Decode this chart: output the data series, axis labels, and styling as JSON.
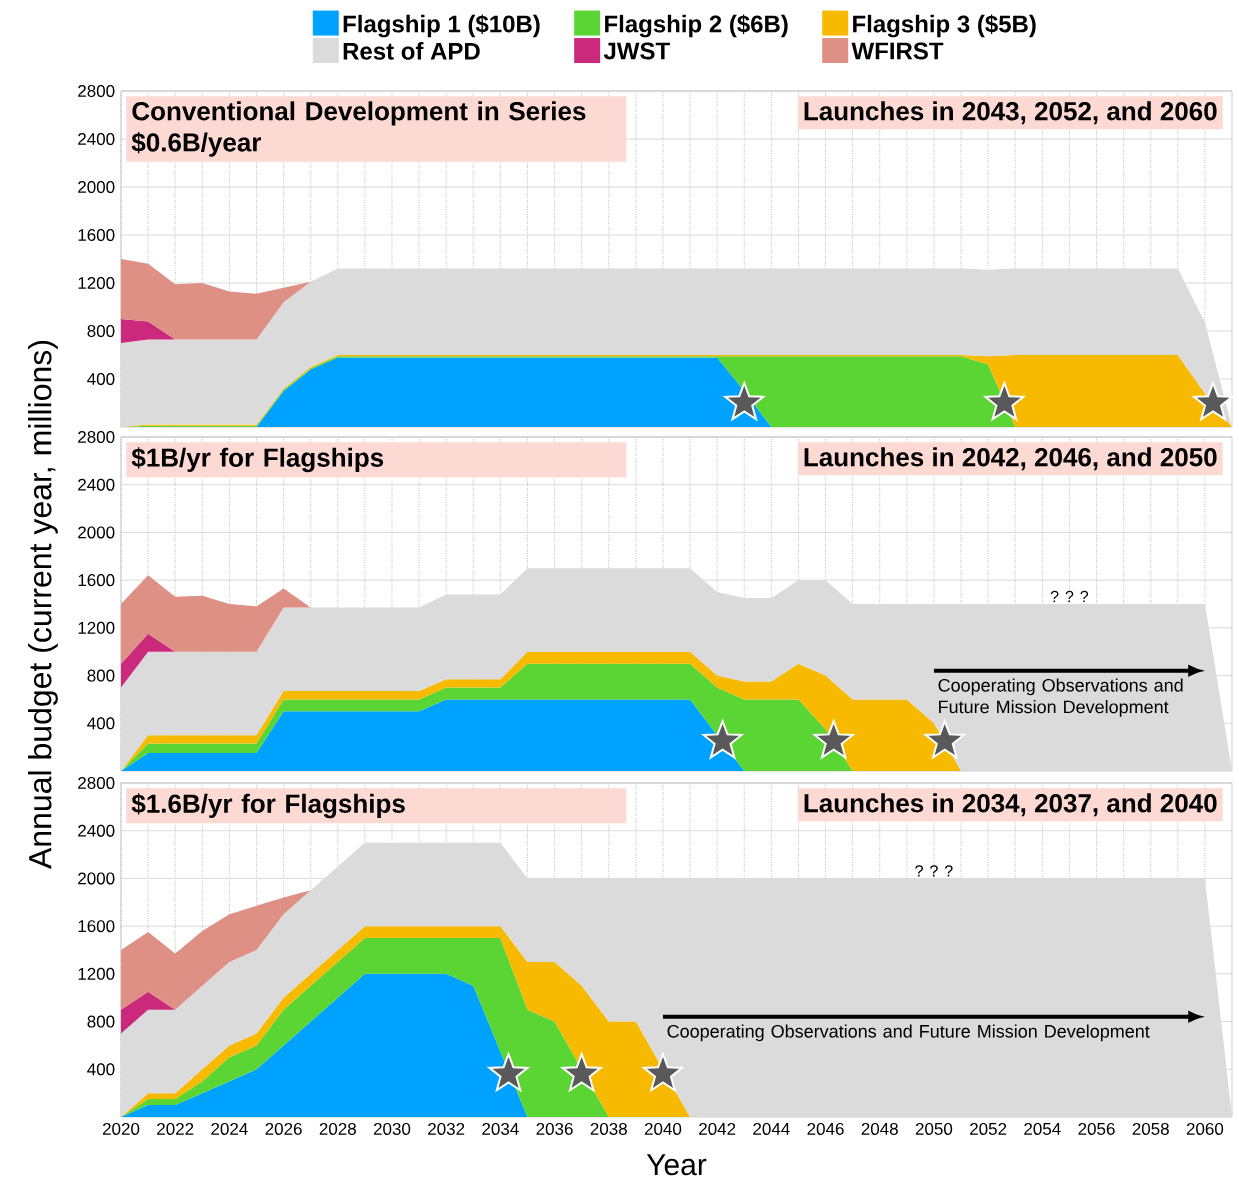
{
  "chart_data": [
    {
      "type": "area",
      "stacked": true,
      "title": "Conventional Development in Series $0.6B/year",
      "subtitle": "Launches in 2043, 2052, and 2060",
      "legend": "top",
      "grid": true,
      "tick_labels": "y",
      "x": [
        2020,
        2021,
        2022,
        2023,
        2024,
        2025,
        2026,
        2027,
        2028,
        2029,
        2030,
        2031,
        2032,
        2033,
        2034,
        2035,
        2036,
        2037,
        2038,
        2039,
        2040,
        2041,
        2042,
        2043,
        2044,
        2045,
        2046,
        2047,
        2048,
        2049,
        2050,
        2051,
        2052,
        2053,
        2054,
        2055,
        2056,
        2057,
        2058,
        2059,
        2060,
        2061
      ],
      "xlim": [
        2020,
        2061
      ],
      "ylim": [
        0,
        2800
      ],
      "yticks": [
        400,
        800,
        1200,
        1600,
        2000,
        2400,
        2800
      ],
      "xticks": [
        2020,
        {
          "value": 2021,
          "label": null
        },
        2022,
        {
          "value": 2023,
          "label": null
        },
        2024,
        {
          "value": 2025,
          "label": null
        },
        2026,
        {
          "value": 2027,
          "label": null
        },
        2028,
        {
          "value": 2029,
          "label": null
        },
        2030,
        {
          "value": 2031,
          "label": null
        },
        2032,
        {
          "value": 2033,
          "label": null
        },
        2034,
        {
          "value": 2035,
          "label": null
        },
        2036,
        {
          "value": 2037,
          "label": null
        },
        2038,
        {
          "value": 2039,
          "label": null
        },
        2040,
        {
          "value": 2041,
          "label": null
        },
        2042,
        {
          "value": 2043,
          "label": null
        },
        2044,
        {
          "value": 2045,
          "label": null
        },
        2046,
        {
          "value": 2047,
          "label": null
        },
        2048,
        {
          "value": 2049,
          "label": null
        },
        2050,
        {
          "value": 2051,
          "label": null
        },
        2052,
        {
          "value": 2053,
          "label": null
        },
        2054,
        {
          "value": 2055,
          "label": null
        },
        2056,
        {
          "value": 2057,
          "label": null
        },
        2058,
        {
          "value": 2059,
          "label": null
        },
        2060
      ],
      "series": [
        {
          "name": "Flagship 1 ($10B)",
          "color": "#00a2ff",
          "values": [
            0,
            0,
            0,
            0,
            0,
            0,
            300,
            480,
            580,
            580,
            580,
            580,
            580,
            580,
            580,
            580,
            580,
            580,
            580,
            580,
            580,
            580,
            580,
            300,
            0,
            null,
            null,
            null,
            null,
            null,
            null,
            null,
            null,
            null,
            null,
            null,
            null,
            null,
            null,
            null,
            null,
            null
          ]
        },
        {
          "name": "Flagship 2 ($6B)",
          "color": "#5ad534",
          "values": [
            0,
            10,
            10,
            10,
            10,
            10,
            10,
            10,
            10,
            10,
            10,
            10,
            10,
            10,
            10,
            10,
            10,
            10,
            10,
            10,
            10,
            10,
            10,
            290,
            590,
            590,
            590,
            590,
            590,
            590,
            590,
            590,
            520,
            0,
            null,
            null,
            null,
            null,
            null,
            null,
            null,
            null
          ]
        },
        {
          "name": "Flagship 3 ($5B)",
          "color": "#f8ba00",
          "values": [
            0,
            10,
            10,
            10,
            10,
            10,
            10,
            10,
            10,
            10,
            10,
            10,
            10,
            10,
            10,
            10,
            10,
            10,
            10,
            10,
            10,
            10,
            10,
            10,
            10,
            10,
            10,
            10,
            10,
            10,
            10,
            10,
            70,
            600,
            600,
            600,
            600,
            600,
            600,
            600,
            280,
            0
          ]
        },
        {
          "name": "Rest of APD",
          "color": "#dbdbdb",
          "values": [
            700,
            710,
            710,
            710,
            710,
            710,
            720,
            710,
            720,
            720,
            720,
            720,
            720,
            720,
            720,
            720,
            720,
            720,
            720,
            720,
            720,
            720,
            720,
            720,
            720,
            720,
            720,
            720,
            720,
            720,
            720,
            720,
            720,
            720,
            720,
            720,
            720,
            720,
            720,
            720,
            590,
            0
          ]
        },
        {
          "name": "JWST",
          "color": "#cb297b",
          "values": [
            200,
            150,
            0,
            null,
            null,
            null,
            null,
            null,
            null,
            null,
            null,
            null,
            null,
            null,
            null,
            null,
            null,
            null,
            null,
            null,
            null,
            null,
            null,
            null,
            null,
            null,
            null,
            null,
            null,
            null,
            null,
            null,
            null,
            null,
            null,
            null,
            null,
            null,
            null,
            null,
            null,
            null
          ]
        },
        {
          "name": "WFIRST",
          "color": "#de9084",
          "values": [
            500,
            480,
            460,
            470,
            400,
            380,
            120,
            0,
            null,
            null,
            null,
            null,
            null,
            null,
            null,
            null,
            null,
            null,
            null,
            null,
            null,
            null,
            null,
            null,
            null,
            null,
            null,
            null,
            null,
            null,
            null,
            null,
            null,
            null,
            null,
            null,
            null,
            null,
            null,
            null,
            null,
            null
          ]
        },
        {
          "type": "scatter",
          "marker": "star",
          "color": "#595959",
          "x": [
            2043,
            2052.6,
            2060.3
          ],
          "values": [
            200,
            200,
            200
          ]
        }
      ]
    },
    {
      "type": "area",
      "stacked": true,
      "title": "$1B/yr for Flagships",
      "subtitle": "Launches in 2042, 2046, and 2050",
      "ylabel": "Annual budget (current year, millions)",
      "grid": true,
      "tick_labels": "y",
      "x": [
        2020,
        2021,
        2022,
        2023,
        2024,
        2025,
        2026,
        2027,
        2028,
        2029,
        2030,
        2031,
        2032,
        2033,
        2034,
        2035,
        2036,
        2037,
        2038,
        2039,
        2040,
        2041,
        2042,
        2043,
        2044,
        2045,
        2046,
        2047,
        2048,
        2049,
        2050,
        2051,
        2052,
        2053,
        2054,
        2055,
        2056,
        2057,
        2058,
        2059,
        2060,
        2061
      ],
      "xlim": [
        2020,
        2061
      ],
      "ylim": [
        0,
        2800
      ],
      "yticks": [
        400,
        800,
        1200,
        1600,
        2000,
        2400,
        2800
      ],
      "xticks": [
        2020,
        {
          "value": 2021,
          "label": null
        },
        2022,
        {
          "value": 2023,
          "label": null
        },
        2024,
        {
          "value": 2025,
          "label": null
        },
        2026,
        {
          "value": 2027,
          "label": null
        },
        2028,
        {
          "value": 2029,
          "label": null
        },
        2030,
        {
          "value": 2031,
          "label": null
        },
        2032,
        {
          "value": 2033,
          "label": null
        },
        2034,
        {
          "value": 2035,
          "label": null
        },
        2036,
        {
          "value": 2037,
          "label": null
        },
        2038,
        {
          "value": 2039,
          "label": null
        },
        2040,
        {
          "value": 2041,
          "label": null
        },
        2042,
        {
          "value": 2043,
          "label": null
        },
        2044,
        {
          "value": 2045,
          "label": null
        },
        2046,
        {
          "value": 2047,
          "label": null
        },
        2048,
        {
          "value": 2049,
          "label": null
        },
        2050,
        {
          "value": 2051,
          "label": null
        },
        2052,
        {
          "value": 2053,
          "label": null
        },
        2054,
        {
          "value": 2055,
          "label": null
        },
        2056,
        {
          "value": 2057,
          "label": null
        },
        2058,
        {
          "value": 2059,
          "label": null
        },
        2060
      ],
      "annotations": [
        {
          "text": "? ? ?",
          "x": 2055,
          "y": 1400
        },
        "Cooperating Observations and Future Mission Development"
      ],
      "series": [
        {
          "color": "#00a2ff",
          "values": [
            0,
            150,
            150,
            150,
            150,
            150,
            500,
            500,
            500,
            500,
            500,
            500,
            600,
            600,
            600,
            600,
            600,
            600,
            600,
            600,
            600,
            600,
            300,
            0,
            null,
            null,
            null,
            null,
            null,
            null,
            null,
            null,
            null,
            null,
            null,
            null,
            null,
            null,
            null,
            null,
            null,
            null
          ]
        },
        {
          "color": "#5ad534",
          "values": [
            0,
            80,
            80,
            80,
            80,
            80,
            100,
            100,
            100,
            100,
            100,
            100,
            100,
            100,
            100,
            300,
            300,
            300,
            300,
            300,
            300,
            300,
            400,
            600,
            600,
            600,
            350,
            0,
            null,
            null,
            null,
            null,
            null,
            null,
            null,
            null,
            null,
            null,
            null,
            null,
            null,
            null
          ]
        },
        {
          "color": "#f8ba00",
          "values": [
            0,
            70,
            70,
            70,
            70,
            70,
            70,
            70,
            70,
            70,
            70,
            70,
            70,
            70,
            70,
            100,
            100,
            100,
            100,
            100,
            100,
            100,
            100,
            150,
            150,
            300,
            450,
            600,
            600,
            600,
            400,
            0,
            null,
            null,
            null,
            null,
            null,
            null,
            null,
            null,
            null,
            null
          ]
        },
        {
          "color": "#dbdbdb",
          "values": [
            700,
            700,
            700,
            700,
            700,
            700,
            700,
            700,
            700,
            700,
            700,
            700,
            710,
            710,
            710,
            700,
            700,
            700,
            700,
            700,
            700,
            700,
            700,
            700,
            700,
            700,
            800,
            800,
            800,
            800,
            1000,
            1400,
            1400,
            1400,
            1400,
            1400,
            1400,
            1400,
            1400,
            1400,
            1400,
            0
          ]
        },
        {
          "color": "#cb297b",
          "values": [
            200,
            150,
            0,
            null,
            null,
            null,
            null,
            null,
            null,
            null,
            null,
            null,
            null,
            null,
            null,
            null,
            null,
            null,
            null,
            null,
            null,
            null,
            null,
            null,
            null,
            null,
            null,
            null,
            null,
            null,
            null,
            null,
            null,
            null,
            null,
            null,
            null,
            null,
            null,
            null,
            null,
            null
          ]
        },
        {
          "color": "#de9084",
          "values": [
            500,
            490,
            460,
            470,
            400,
            380,
            160,
            0,
            null,
            null,
            null,
            null,
            null,
            null,
            null,
            null,
            null,
            null,
            null,
            null,
            null,
            null,
            null,
            null,
            null,
            null,
            null,
            null,
            null,
            null,
            null,
            null,
            null,
            null,
            null,
            null,
            null,
            null,
            null,
            null,
            null,
            null
          ]
        },
        {
          "type": "scatter",
          "marker": "star",
          "color": "#595959",
          "x": [
            2042.2,
            2046.3,
            2050.4
          ],
          "values": [
            250,
            250,
            250
          ]
        }
      ]
    },
    {
      "type": "area",
      "stacked": true,
      "title": "$1.6B/yr for Flagships",
      "subtitle": "Launches in 2034, 2037, and 2040",
      "xlabel": "Year",
      "grid": true,
      "x": [
        2020,
        2021,
        2022,
        2023,
        2024,
        2025,
        2026,
        2027,
        2028,
        2029,
        2030,
        2031,
        2032,
        2033,
        2034,
        2035,
        2036,
        2037,
        2038,
        2039,
        2040,
        2041,
        2042,
        2043,
        2044,
        2045,
        2046,
        2047,
        2048,
        2049,
        2050,
        2051,
        2052,
        2053,
        2054,
        2055,
        2056,
        2057,
        2058,
        2059,
        2060,
        2061
      ],
      "xlim": [
        2020,
        2061
      ],
      "ylim": [
        0,
        2800
      ],
      "yticks": [
        400,
        800,
        1200,
        1600,
        2000,
        2400,
        2800
      ],
      "xticks": [
        2020,
        {
          "value": 2021,
          "label": null
        },
        2022,
        {
          "value": 2023,
          "label": null
        },
        2024,
        {
          "value": 2025,
          "label": null
        },
        2026,
        {
          "value": 2027,
          "label": null
        },
        2028,
        {
          "value": 2029,
          "label": null
        },
        2030,
        {
          "value": 2031,
          "label": null
        },
        2032,
        {
          "value": 2033,
          "label": null
        },
        2034,
        {
          "value": 2035,
          "label": null
        },
        2036,
        {
          "value": 2037,
          "label": null
        },
        2038,
        {
          "value": 2039,
          "label": null
        },
        2040,
        {
          "value": 2041,
          "label": null
        },
        2042,
        {
          "value": 2043,
          "label": null
        },
        2044,
        {
          "value": 2045,
          "label": null
        },
        2046,
        {
          "value": 2047,
          "label": null
        },
        2048,
        {
          "value": 2049,
          "label": null
        },
        2050,
        {
          "value": 2051,
          "label": null
        },
        2052,
        {
          "value": 2053,
          "label": null
        },
        2054,
        {
          "value": 2055,
          "label": null
        },
        2056,
        {
          "value": 2057,
          "label": null
        },
        2058,
        {
          "value": 2059,
          "label": null
        },
        2060
      ],
      "annotations": [
        {
          "text": "? ? ?",
          "x": 2050,
          "y": 2000
        },
        "Cooperating Observations and Future Mission Development"
      ],
      "series": [
        {
          "color": "#00a2ff",
          "values": [
            0,
            100,
            100,
            200,
            300,
            400,
            600,
            800,
            1000,
            1200,
            1200,
            1200,
            1200,
            1100,
            550,
            0,
            null,
            null,
            null,
            null,
            null,
            null,
            null,
            null,
            null,
            null,
            null,
            null,
            null,
            null,
            null,
            null,
            null,
            null,
            null,
            null,
            null,
            null,
            null,
            null,
            null,
            null
          ]
        },
        {
          "color": "#5ad534",
          "values": [
            0,
            50,
            50,
            100,
            200,
            200,
            300,
            300,
            300,
            300,
            300,
            300,
            300,
            400,
            950,
            900,
            800,
            400,
            0,
            null,
            null,
            null,
            null,
            null,
            null,
            null,
            null,
            null,
            null,
            null,
            null,
            null,
            null,
            null,
            null,
            null,
            null,
            null,
            null,
            null,
            null,
            null
          ]
        },
        {
          "color": "#f8ba00",
          "values": [
            0,
            50,
            50,
            100,
            100,
            100,
            100,
            100,
            100,
            100,
            100,
            100,
            100,
            100,
            100,
            400,
            500,
            700,
            800,
            800,
            400,
            0,
            null,
            null,
            null,
            null,
            null,
            null,
            null,
            null,
            null,
            null,
            null,
            null,
            null,
            null,
            null,
            null,
            null,
            null,
            null,
            null
          ]
        },
        {
          "color": "#dbdbdb",
          "values": [
            700,
            700,
            700,
            700,
            700,
            700,
            700,
            700,
            700,
            700,
            700,
            700,
            700,
            700,
            700,
            700,
            700,
            900,
            1200,
            1200,
            1600,
            2000,
            2000,
            2000,
            2000,
            2000,
            2000,
            2000,
            2000,
            2000,
            2000,
            2000,
            2000,
            2000,
            2000,
            2000,
            2000,
            2000,
            2000,
            2000,
            2000,
            0
          ]
        },
        {
          "color": "#cb297b",
          "values": [
            200,
            150,
            0,
            null,
            null,
            null,
            null,
            null,
            null,
            null,
            null,
            null,
            null,
            null,
            null,
            null,
            null,
            null,
            null,
            null,
            null,
            null,
            null,
            null,
            null,
            null,
            null,
            null,
            null,
            null,
            null,
            null,
            null,
            null,
            null,
            null,
            null,
            null,
            null,
            null,
            null,
            null
          ]
        },
        {
          "color": "#de9084",
          "values": [
            500,
            500,
            470,
            460,
            400,
            370,
            140,
            0,
            null,
            null,
            null,
            null,
            null,
            null,
            null,
            null,
            null,
            null,
            null,
            null,
            null,
            null,
            null,
            null,
            null,
            null,
            null,
            null,
            null,
            null,
            null,
            null,
            null,
            null,
            null,
            null,
            null,
            null,
            null,
            null,
            null,
            null
          ]
        },
        {
          "type": "scatter",
          "marker": "star",
          "color": "#595959",
          "x": [
            2034.3,
            2037,
            2040
          ],
          "values": [
            360,
            360,
            360
          ]
        }
      ]
    }
  ]
}
